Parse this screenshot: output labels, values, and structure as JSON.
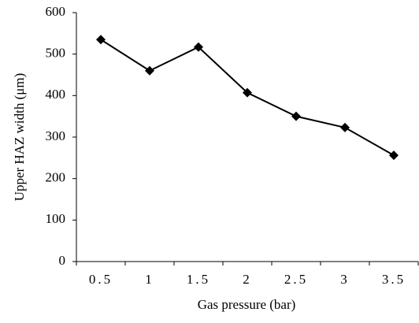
{
  "chart_data": {
    "type": "line",
    "x_label": "Gas pressure (bar)",
    "y_label": "Upper HAZ width (μm)",
    "categories": [
      "0.5",
      "1",
      "1.5",
      "2",
      "2.5",
      "3",
      "3.5"
    ],
    "series": [
      {
        "name": null,
        "color": "#000000",
        "values": [
          535,
          460,
          517,
          407,
          350,
          323,
          256
        ]
      }
    ],
    "ylim": [
      0,
      600
    ],
    "yticks": [
      0,
      100,
      200,
      300,
      400,
      500,
      600
    ],
    "grid": false
  }
}
